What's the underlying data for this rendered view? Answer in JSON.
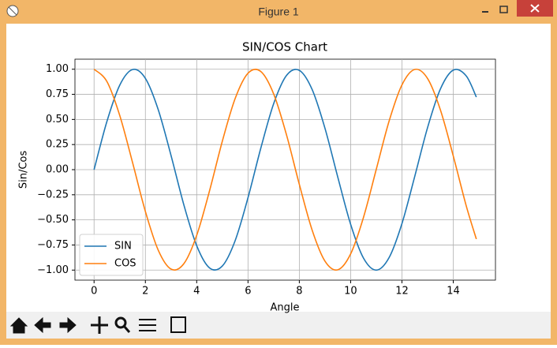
{
  "window": {
    "title": "Figure 1"
  },
  "chart_data": {
    "type": "line",
    "title": "SIN/COS Chart",
    "x_label": "Angle",
    "y_label": "Sin/Cos",
    "x": [
      0,
      0.5,
      1,
      1.5,
      2,
      2.5,
      3,
      3.5,
      4,
      4.5,
      5,
      5.5,
      6,
      6.5,
      7,
      7.5,
      8,
      8.5,
      9,
      9.5,
      10,
      10.5,
      11,
      11.5,
      12,
      12.5,
      13,
      13.5,
      14,
      14.5,
      14.9
    ],
    "series": [
      {
        "name": "SIN",
        "color": "#1f77b4",
        "values": [
          0,
          0.479,
          0.841,
          0.997,
          0.909,
          0.598,
          0.141,
          -0.351,
          -0.757,
          -0.978,
          -0.959,
          -0.706,
          -0.279,
          0.215,
          0.657,
          0.938,
          0.989,
          0.798,
          0.412,
          -0.075,
          -0.544,
          -0.88,
          -1.0,
          -0.875,
          -0.537,
          -0.066,
          0.42,
          0.804,
          0.991,
          0.935,
          0.723
        ]
      },
      {
        "name": "COS",
        "color": "#ff7f0e",
        "values": [
          1,
          0.878,
          0.54,
          0.071,
          -0.416,
          -0.801,
          -0.99,
          -0.936,
          -0.654,
          -0.211,
          0.284,
          0.709,
          0.96,
          0.977,
          0.754,
          0.347,
          -0.146,
          -0.602,
          -0.911,
          -0.997,
          -0.839,
          -0.476,
          0.004,
          0.484,
          0.844,
          0.998,
          0.907,
          0.594,
          0.137,
          -0.355,
          -0.691
        ]
      }
    ],
    "xlim": [
      -0.745,
      15.645
    ],
    "ylim": [
      -1.1,
      1.1
    ],
    "xticks": [
      0,
      2,
      4,
      6,
      8,
      10,
      12,
      14
    ],
    "yticks": [
      {
        "value": -1,
        "label": "−1.00"
      },
      {
        "value": -0.75,
        "label": "−0.75"
      },
      {
        "value": -0.5,
        "label": "−0.50"
      },
      {
        "value": -0.25,
        "label": "−0.25"
      },
      {
        "value": 0,
        "label": "0.00"
      },
      {
        "value": 0.25,
        "label": "0.25"
      },
      {
        "value": 0.5,
        "label": "0.50"
      },
      {
        "value": 0.75,
        "label": "0.75"
      },
      {
        "value": 1,
        "label": "1.00"
      }
    ],
    "grid": true,
    "legend": "lower left"
  }
}
